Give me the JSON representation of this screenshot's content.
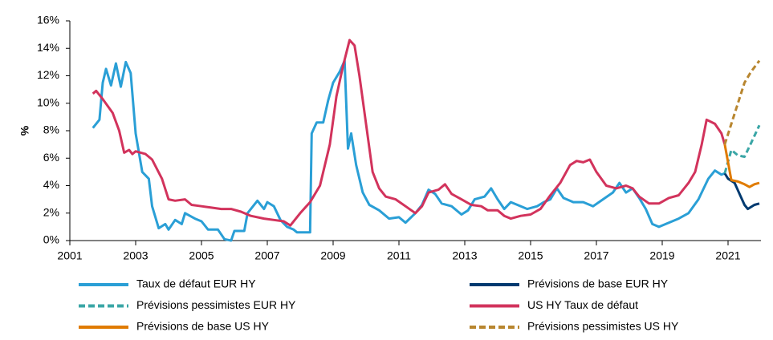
{
  "chart_data": {
    "type": "line",
    "ylabel": "%",
    "xlim": [
      2001,
      2022
    ],
    "xticks": [
      2001,
      2003,
      2005,
      2007,
      2009,
      2011,
      2013,
      2015,
      2017,
      2019,
      2021
    ],
    "ylim": [
      0,
      16
    ],
    "yticks": [
      {
        "value": 0,
        "label": "0%"
      },
      {
        "value": 2,
        "label": "2%"
      },
      {
        "value": 4,
        "label": "4%"
      },
      {
        "value": 6,
        "label": "6%"
      },
      {
        "value": 8,
        "label": "8%"
      },
      {
        "value": 10,
        "label": "10%"
      },
      {
        "value": 12,
        "label": "12%"
      },
      {
        "value": 14,
        "label": "14%"
      },
      {
        "value": 16,
        "label": "16%"
      }
    ],
    "grid": false,
    "series": [
      {
        "name": "Taux de défaut EUR HY",
        "color": "#2a9fd6",
        "dashed": false,
        "x": [
          2001.7,
          2001.9,
          2002.0,
          2002.1,
          2002.25,
          2002.4,
          2002.55,
          2002.7,
          2002.85,
          2003.0,
          2003.2,
          2003.4,
          2003.5,
          2003.7,
          2003.9,
          2004.0,
          2004.2,
          2004.4,
          2004.5,
          2004.8,
          2005.0,
          2005.2,
          2005.5,
          2005.7,
          2005.9,
          2006.0,
          2006.3,
          2006.4,
          2006.7,
          2006.9,
          2007.0,
          2007.2,
          2007.4,
          2007.6,
          2007.8,
          2007.9,
          2008.1,
          2008.3,
          2008.35,
          2008.5,
          2008.7,
          2008.85,
          2009.0,
          2009.2,
          2009.35,
          2009.45,
          2009.55,
          2009.7,
          2009.9,
          2010.1,
          2010.4,
          2010.7,
          2011.0,
          2011.2,
          2011.5,
          2011.7,
          2011.9,
          2012.1,
          2012.3,
          2012.6,
          2012.9,
          2013.1,
          2013.3,
          2013.6,
          2013.8,
          2014.0,
          2014.2,
          2014.4,
          2014.6,
          2014.9,
          2015.2,
          2015.4,
          2015.6,
          2015.8,
          2016.0,
          2016.3,
          2016.6,
          2016.9,
          2017.2,
          2017.5,
          2017.7,
          2017.9,
          2018.1,
          2018.3,
          2018.5,
          2018.7,
          2018.9,
          2019.2,
          2019.5,
          2019.8,
          2020.1,
          2020.4,
          2020.6,
          2020.8,
          2020.9
        ],
        "values": [
          8.2,
          8.8,
          11.5,
          12.5,
          11.3,
          12.9,
          11.2,
          13.0,
          12.2,
          7.8,
          5.0,
          4.5,
          2.5,
          0.9,
          1.2,
          0.8,
          1.5,
          1.2,
          2.0,
          1.6,
          1.4,
          0.8,
          0.8,
          0.1,
          0,
          0.7,
          0.7,
          2.0,
          2.9,
          2.3,
          2.8,
          2.5,
          1.5,
          1.0,
          0.8,
          0.6,
          0.6,
          0.6,
          7.8,
          8.6,
          8.6,
          10.2,
          11.5,
          12.3,
          13.1,
          6.7,
          7.8,
          5.5,
          3.5,
          2.6,
          2.2,
          1.6,
          1.7,
          1.3,
          2.0,
          2.6,
          3.7,
          3.4,
          2.7,
          2.5,
          1.9,
          2.2,
          3.0,
          3.2,
          3.8,
          3.0,
          2.3,
          2.8,
          2.6,
          2.3,
          2.5,
          2.8,
          3.0,
          3.8,
          3.1,
          2.8,
          2.8,
          2.5,
          3.0,
          3.5,
          4.2,
          3.5,
          3.8,
          3.1,
          2.3,
          1.2,
          1.0,
          1.3,
          1.6,
          2.0,
          3.0,
          4.5,
          5.1,
          4.8,
          4.9
        ]
      },
      {
        "name": "Prévisions de base EUR HY",
        "color": "#003a70",
        "dashed": false,
        "x": [
          2020.9,
          2021.0,
          2021.2,
          2021.35,
          2021.5,
          2021.6,
          2021.8,
          2021.95
        ],
        "values": [
          4.9,
          4.5,
          4.2,
          3.4,
          2.6,
          2.3,
          2.6,
          2.7
        ]
      },
      {
        "name": "Prévisions pessimistes EUR HY",
        "color": "#3aa6a6",
        "dashed": true,
        "x": [
          2020.9,
          2021.1,
          2021.3,
          2021.5,
          2021.7,
          2021.95
        ],
        "values": [
          4.9,
          6.6,
          6.2,
          6.1,
          7.1,
          8.4
        ]
      },
      {
        "name": "US HY Taux de défaut",
        "color": "#d2335c",
        "dashed": false,
        "x": [
          2001.7,
          2001.8,
          2002.0,
          2002.3,
          2002.5,
          2002.65,
          2002.8,
          2002.9,
          2003.0,
          2003.3,
          2003.5,
          2003.8,
          2004.0,
          2004.2,
          2004.5,
          2004.7,
          2005.0,
          2005.3,
          2005.6,
          2005.9,
          2006.2,
          2006.5,
          2006.9,
          2007.2,
          2007.5,
          2007.7,
          2008.0,
          2008.3,
          2008.6,
          2008.9,
          2009.1,
          2009.3,
          2009.5,
          2009.65,
          2009.8,
          2010.0,
          2010.2,
          2010.4,
          2010.6,
          2010.9,
          2011.2,
          2011.5,
          2011.7,
          2011.9,
          2012.2,
          2012.4,
          2012.6,
          2012.9,
          2013.2,
          2013.5,
          2013.7,
          2014.0,
          2014.2,
          2014.4,
          2014.7,
          2015.0,
          2015.3,
          2015.6,
          2015.9,
          2016.2,
          2016.4,
          2016.6,
          2016.8,
          2017.0,
          2017.3,
          2017.6,
          2017.9,
          2018.1,
          2018.3,
          2018.6,
          2018.9,
          2019.2,
          2019.5,
          2019.8,
          2020.0,
          2020.2,
          2020.35,
          2020.6,
          2020.8,
          2020.9
        ],
        "values": [
          10.7,
          10.9,
          10.3,
          9.3,
          8.0,
          6.4,
          6.6,
          6.3,
          6.5,
          6.3,
          5.9,
          4.5,
          3.0,
          2.9,
          3.0,
          2.6,
          2.5,
          2.4,
          2.3,
          2.3,
          2.1,
          1.8,
          1.6,
          1.5,
          1.4,
          1.1,
          2.0,
          2.8,
          4.0,
          7.0,
          10.5,
          12.7,
          14.6,
          14.2,
          12.0,
          8.5,
          5.0,
          3.8,
          3.2,
          3.0,
          2.5,
          2.0,
          2.5,
          3.5,
          3.7,
          4.1,
          3.4,
          3.0,
          2.6,
          2.5,
          2.2,
          2.2,
          1.8,
          1.6,
          1.8,
          1.9,
          2.3,
          3.3,
          4.2,
          5.5,
          5.8,
          5.7,
          5.9,
          5.0,
          4.0,
          3.8,
          4.0,
          3.8,
          3.2,
          2.7,
          2.7,
          3.1,
          3.3,
          4.2,
          5.0,
          7.0,
          8.8,
          8.5,
          7.8,
          7.0
        ]
      },
      {
        "name": "Prévisions de base US HY",
        "color": "#e07b00",
        "dashed": false,
        "x": [
          2020.9,
          2021.1,
          2021.3,
          2021.5,
          2021.65,
          2021.8,
          2021.95
        ],
        "values": [
          7.0,
          4.4,
          4.3,
          4.1,
          3.9,
          4.1,
          4.2
        ]
      },
      {
        "name": "Prévisions pessimistes US HY",
        "color": "#b8862f",
        "dashed": true,
        "x": [
          2020.9,
          2021.1,
          2021.3,
          2021.5,
          2021.7,
          2021.95
        ],
        "values": [
          7.0,
          8.5,
          10.0,
          11.5,
          12.3,
          13.1
        ]
      }
    ]
  }
}
